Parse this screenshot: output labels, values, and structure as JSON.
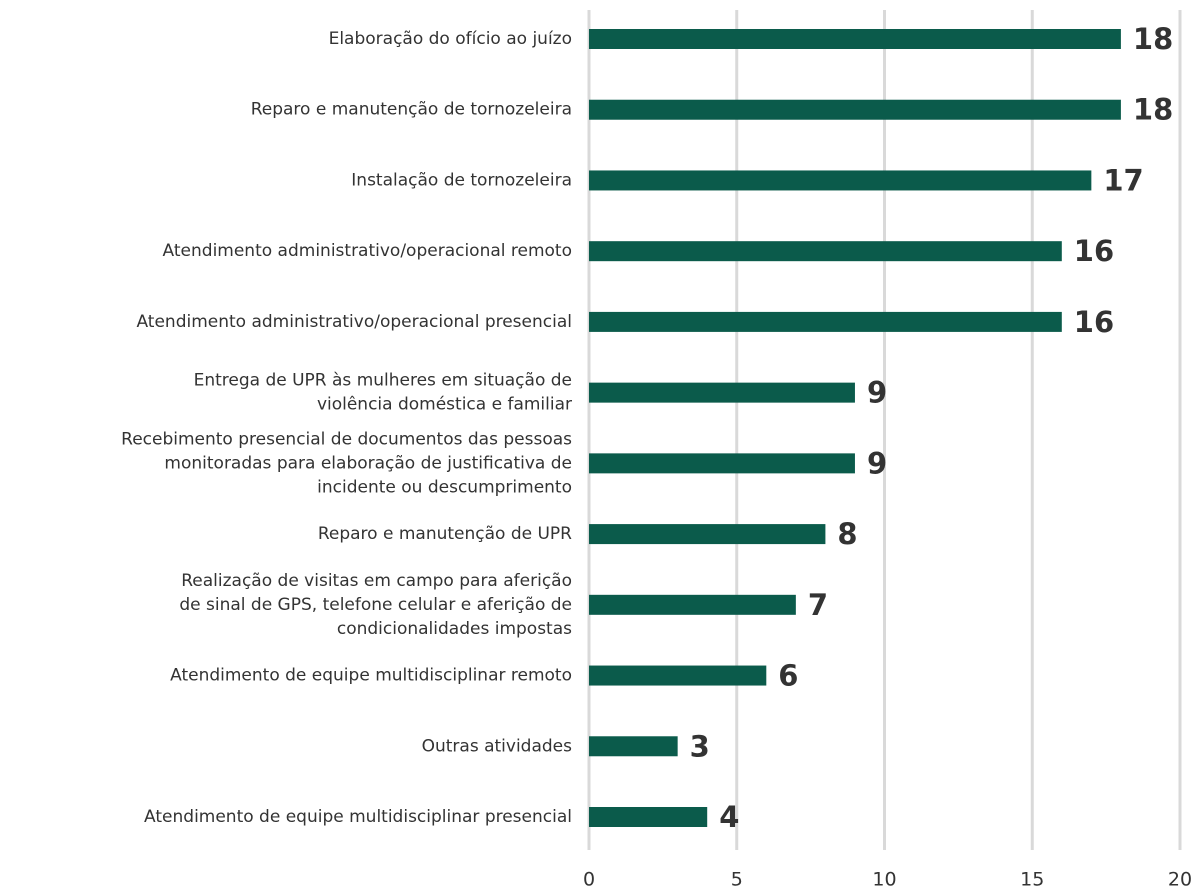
{
  "chart_data": {
    "type": "barh",
    "categories": [
      [
        "Elaboração do ofício ao juízo"
      ],
      [
        "Reparo e manutenção de tornozeleira"
      ],
      [
        "Instalação de tornozeleira"
      ],
      [
        "Atendimento administrativo/operacional remoto"
      ],
      [
        "Atendimento administrativo/operacional presencial"
      ],
      [
        "Entrega de UPR às mulheres em situação de",
        "violência doméstica e familiar"
      ],
      [
        "Recebimento presencial de documentos das pessoas",
        "monitoradas para elaboração de justificativa de",
        "incidente ou descumprimento"
      ],
      [
        "Reparo e manutenção de UPR"
      ],
      [
        "Realização de visitas em campo para aferição",
        "de sinal de GPS, telefone celular e aferição de",
        "condicionalidades impostas"
      ],
      [
        "Atendimento de equipe multidisciplinar remoto"
      ],
      [
        "Outras atividades"
      ],
      [
        "Atendimento de equipe multidisciplinar presencial"
      ]
    ],
    "values": [
      18,
      18,
      17,
      16,
      16,
      9,
      9,
      8,
      7,
      6,
      3,
      4
    ],
    "color": "#0b5b4b",
    "xlim": [
      0,
      20
    ],
    "xticks": [
      0,
      5,
      10,
      15,
      20
    ],
    "grid": true
  }
}
